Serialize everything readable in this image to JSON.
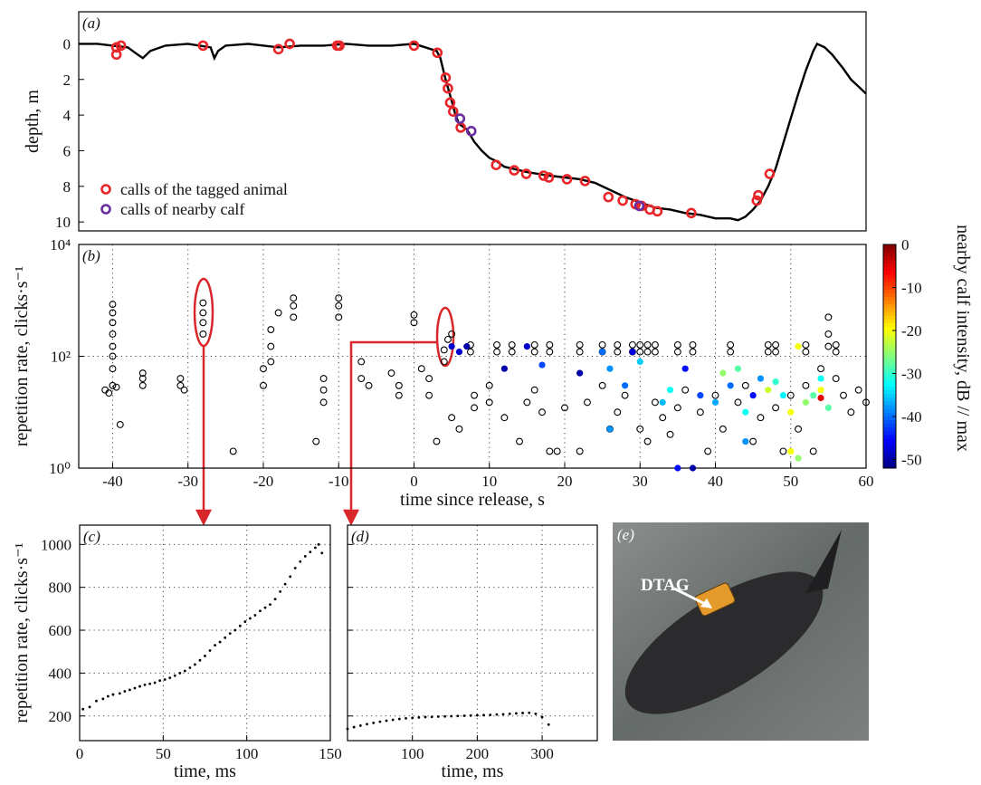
{
  "chart_data": [
    {
      "type": "line",
      "label": "(a)",
      "ylabel": "depth, m",
      "xlim": [
        -44.5,
        60
      ],
      "ylim": [
        -1.8,
        10.5
      ],
      "y_reverse": true,
      "yticks": [
        0,
        2,
        4,
        6,
        8,
        10
      ],
      "legend": "lower left",
      "series": [
        {
          "color": "#000000",
          "x": [
            -44.5,
            -42,
            -40,
            -38,
            -37,
            -36,
            -35,
            -33,
            -30,
            -27,
            -26.5,
            -26,
            -25,
            -22,
            -18,
            -15,
            -12,
            -9,
            -6,
            -3,
            0,
            1.5,
            3,
            3.5,
            4.2,
            5,
            5.5,
            6,
            7,
            8,
            9,
            10,
            11,
            12,
            13,
            15,
            18,
            20,
            22,
            24,
            26,
            28,
            30,
            32,
            34,
            36,
            38,
            40,
            42,
            43,
            44,
            45,
            46,
            47,
            48,
            49,
            50,
            51,
            52,
            53,
            53.5,
            54.5,
            55.5,
            57,
            58,
            59,
            60
          ],
          "values": [
            0,
            0,
            0.1,
            0.2,
            0.5,
            0.8,
            0.4,
            0.1,
            0,
            0.2,
            0.8,
            0.4,
            0.1,
            0,
            0.2,
            0.1,
            0.1,
            0,
            0.1,
            0.1,
            0,
            0.2,
            0.4,
            0.8,
            2,
            3.2,
            4,
            4.5,
            4.8,
            5.5,
            6,
            6.4,
            6.6,
            6.9,
            7,
            7.2,
            7.4,
            7.5,
            7.6,
            7.8,
            8.2,
            8.6,
            8.9,
            9.2,
            9.3,
            9.5,
            9.6,
            9.8,
            9.8,
            9.9,
            9.7,
            9.3,
            8.8,
            8,
            7,
            5.6,
            4.2,
            2.8,
            1.5,
            0.4,
            0,
            0.2,
            0.6,
            1.4,
            2,
            2.4,
            2.8
          ]
        },
        {
          "name": "calls of the tagged animal",
          "marker": "ring",
          "color": "#e8262a",
          "x": [
            -39.5,
            -38.9,
            -39.5,
            -28,
            -18,
            -16.5,
            -10.2,
            -9.9,
            0,
            3.1,
            4.2,
            4.5,
            4.8,
            5.2,
            6.2,
            10.9,
            13.3,
            14.9,
            17.2,
            17.9,
            20.3,
            22.7,
            25.8,
            27.7,
            29.4,
            30.2,
            31.3,
            32.3,
            36.8,
            45.5,
            45.7,
            47.2
          ],
          "values": [
            0.2,
            0.1,
            0.6,
            0.1,
            0.3,
            0,
            0.1,
            0.1,
            0.1,
            0.5,
            1.9,
            2.5,
            3.3,
            3.8,
            4.7,
            6.8,
            7.1,
            7.3,
            7.4,
            7.5,
            7.6,
            7.7,
            8.6,
            8.8,
            9,
            9.1,
            9.3,
            9.4,
            9.5,
            8.8,
            8.5,
            7.3
          ]
        },
        {
          "name": "calls of nearby calf",
          "marker": "ring",
          "color": "#6a2ea0",
          "x": [
            6.1,
            7.6,
            29.9
          ],
          "values": [
            4.2,
            4.9,
            9.1
          ]
        }
      ]
    },
    {
      "type": "scatter",
      "label": "(b)",
      "ylabel": "repetition rate, clicks·s⁻¹",
      "xlabel": "time since release, s",
      "xlim": [
        -44.5,
        60
      ],
      "ylim": [
        1,
        10000
      ],
      "log_y": true,
      "grid": true,
      "xticks": [
        -40,
        -30,
        -20,
        -10,
        0,
        10,
        20,
        30,
        40,
        50,
        60
      ],
      "yticks": [
        {
          "value": 1,
          "label": "10⁰"
        },
        {
          "value": 100,
          "label": "10²"
        },
        {
          "value": 10000,
          "label": "10⁴"
        }
      ],
      "series": [
        {
          "marker": "open",
          "color": "#000000",
          "x": [
            -41,
            -40.5,
            -40,
            -40,
            -40,
            -40,
            -40,
            -40,
            -40,
            -40,
            -39.5,
            -39,
            -36,
            -36,
            -36,
            -31,
            -31,
            -30.5,
            -28,
            -28,
            -28,
            -28,
            -24,
            -20,
            -20,
            -19,
            -19,
            -19,
            -18,
            -16,
            -16,
            -16,
            -12,
            -12,
            -12,
            -13,
            -10,
            -10,
            -10,
            -7,
            -7,
            -6,
            -3,
            -2,
            -2,
            0,
            0,
            1,
            2,
            2,
            4,
            4,
            4.5,
            5,
            7.5,
            7.5,
            11,
            11,
            13,
            13,
            16,
            16,
            18,
            18,
            22,
            22,
            25,
            25,
            27,
            27,
            29,
            29,
            30,
            30,
            31,
            31,
            32,
            32,
            35,
            35,
            37,
            37,
            42,
            42,
            47,
            47,
            48,
            48,
            52,
            52,
            56,
            56,
            3,
            5,
            6,
            8,
            8,
            10,
            10,
            12,
            14,
            15,
            16,
            17,
            18,
            19,
            20,
            22,
            23,
            25,
            26,
            27,
            28,
            30,
            31,
            32,
            33,
            34,
            35,
            36,
            38,
            39,
            40,
            41,
            43,
            44,
            45,
            46,
            48,
            50,
            51,
            52,
            54,
            55,
            55,
            56,
            57,
            58,
            59,
            60,
            55,
            53,
            49
          ],
          "values": [
            25,
            22,
            30,
            60,
            100,
            150,
            250,
            400,
            600,
            850,
            28,
            6,
            30,
            40,
            50,
            30,
            40,
            25,
            250,
            400,
            600,
            900,
            2,
            30,
            60,
            80,
            150,
            300,
            600,
            500,
            800,
            1100,
            25,
            40,
            15,
            3,
            500,
            800,
            1100,
            40,
            80,
            30,
            50,
            20,
            30,
            400,
            550,
            60,
            40,
            20,
            80,
            130,
            200,
            250,
            160,
            120,
            160,
            120,
            160,
            120,
            160,
            120,
            160,
            120,
            160,
            120,
            160,
            120,
            160,
            120,
            160,
            120,
            160,
            120,
            160,
            120,
            160,
            120,
            160,
            120,
            160,
            120,
            160,
            120,
            160,
            120,
            160,
            120,
            160,
            120,
            160,
            120,
            3,
            8,
            5,
            12,
            20,
            15,
            30,
            8,
            3,
            15,
            25,
            10,
            2,
            2,
            12,
            2,
            15,
            30,
            5,
            10,
            20,
            5,
            3,
            15,
            8,
            4,
            12,
            25,
            10,
            2,
            20,
            5,
            15,
            30,
            3,
            8,
            12,
            20,
            5,
            30,
            60,
            150,
            250,
            40,
            20,
            10,
            25,
            15,
            500,
            2,
            2
          ]
        },
        {
          "marker": "filled",
          "x": [
            5,
            6,
            7,
            12,
            15,
            17,
            22,
            25,
            26,
            26,
            28,
            29,
            30,
            33,
            34,
            36,
            37,
            38,
            40,
            41,
            42,
            43,
            44,
            45,
            46,
            47,
            48,
            49,
            50,
            51,
            52,
            53,
            54,
            54,
            54,
            55,
            50,
            51,
            44,
            35
          ],
          "values": [
            150,
            120,
            150,
            60,
            150,
            70,
            50,
            120,
            60,
            5,
            30,
            120,
            80,
            15,
            25,
            60,
            1,
            20,
            15,
            50,
            30,
            60,
            10,
            20,
            40,
            25,
            35,
            20,
            10,
            150,
            15,
            20,
            18,
            40,
            25,
            12,
            2,
            1.5,
            3,
            1
          ],
          "intensity": [
            -48,
            -48,
            -50,
            -50,
            -48,
            -42,
            -50,
            -40,
            -38,
            -38,
            -40,
            -47,
            -35,
            -36,
            -32,
            -45,
            -50,
            -42,
            -37,
            -25,
            -40,
            -28,
            -32,
            -45,
            -38,
            -22,
            -30,
            -33,
            -20,
            -20,
            -25,
            -28,
            -5,
            -32,
            -20,
            -28,
            -20,
            -25,
            -38,
            -45
          ]
        }
      ],
      "colorbar": {
        "label": "nearby calf intensity, dB // max",
        "colormap": "jet",
        "clim": [
          -52,
          0
        ],
        "ticks": [
          0,
          -10,
          -20,
          -30,
          -40,
          -50
        ]
      }
    },
    {
      "type": "scatter",
      "label": "(c)",
      "ylabel": "repetition rate, clicks·s⁻¹",
      "xlabel": "time, ms",
      "xlim": [
        0,
        150
      ],
      "ylim": [
        85,
        1090
      ],
      "grid": true,
      "xticks": [
        0,
        50,
        100,
        150
      ],
      "yticks": [
        200,
        400,
        600,
        800,
        1000
      ],
      "series": [
        {
          "marker": "dot",
          "color": "#000000",
          "x": [
            2,
            6,
            10,
            14,
            17,
            20,
            24,
            27,
            30,
            33,
            36,
            39,
            42,
            45,
            48,
            51,
            54,
            57,
            60,
            63,
            66,
            69,
            72,
            75,
            78,
            81,
            84,
            87,
            90,
            93,
            96,
            99,
            102,
            105,
            108,
            111,
            114,
            117,
            120,
            123,
            126,
            129,
            132,
            135,
            138,
            141,
            143,
            145
          ],
          "values": [
            232,
            242,
            270,
            280,
            292,
            300,
            305,
            315,
            322,
            330,
            338,
            345,
            350,
            355,
            365,
            370,
            378,
            388,
            400,
            410,
            425,
            440,
            460,
            480,
            505,
            530,
            545,
            565,
            585,
            600,
            620,
            640,
            655,
            670,
            690,
            705,
            720,
            745,
            780,
            815,
            850,
            890,
            920,
            945,
            965,
            985,
            1000,
            960
          ]
        }
      ]
    },
    {
      "type": "scatter",
      "label": "(d)",
      "xlabel": "time, ms",
      "xlim": [
        0,
        385
      ],
      "sharey": true,
      "grid": true,
      "xticks": [
        100,
        200,
        300
      ],
      "series": [
        {
          "marker": "dot",
          "color": "#000000",
          "x": [
            0,
            10,
            20,
            30,
            40,
            50,
            60,
            70,
            80,
            90,
            100,
            110,
            120,
            130,
            140,
            150,
            160,
            170,
            180,
            190,
            200,
            210,
            220,
            230,
            240,
            250,
            260,
            270,
            280,
            290,
            300,
            310
          ],
          "values": [
            140,
            148,
            155,
            162,
            168,
            173,
            178,
            182,
            186,
            189,
            191,
            193,
            195,
            196,
            197,
            198,
            199,
            200,
            201,
            202,
            203,
            204,
            205,
            207,
            208,
            210,
            212,
            214,
            215,
            210,
            195,
            160
          ]
        }
      ]
    }
  ],
  "figure_e": {
    "label": "(e)",
    "tag_label": "DTAG"
  }
}
